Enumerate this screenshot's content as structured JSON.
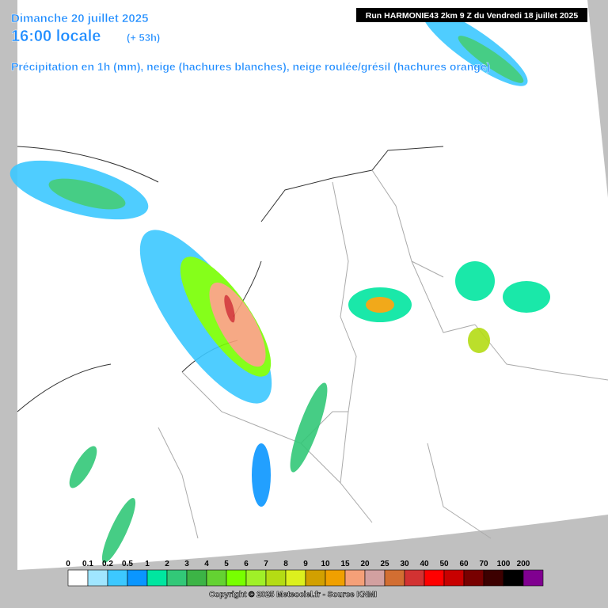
{
  "header": {
    "date": "Dimanche 20 juillet 2025",
    "time": "16:00 locale",
    "lead": "(+ 53h)",
    "subtitle": "Précipitation en 1h (mm), neige (hachures blanches), neige roulée/grésil (hachures orange)",
    "run": "Run HARMONIE43 2km 9 Z du Vendredi 18 juillet 2025"
  },
  "legend": {
    "items": [
      {
        "label": "0",
        "color": "#ffffff"
      },
      {
        "label": "0.1",
        "color": "#a0e6ff"
      },
      {
        "label": "0.2",
        "color": "#3cc8ff"
      },
      {
        "label": "0.5",
        "color": "#0a96ff"
      },
      {
        "label": "1",
        "color": "#00e6a0"
      },
      {
        "label": "2",
        "color": "#32c878"
      },
      {
        "label": "3",
        "color": "#3cb446"
      },
      {
        "label": "4",
        "color": "#64d232"
      },
      {
        "label": "5",
        "color": "#78ff00"
      },
      {
        "label": "6",
        "color": "#a0f028"
      },
      {
        "label": "7",
        "color": "#b4dc14"
      },
      {
        "label": "8",
        "color": "#dcf01e"
      },
      {
        "label": "9",
        "color": "#d2a000"
      },
      {
        "label": "10",
        "color": "#f0a000"
      },
      {
        "label": "15",
        "color": "#f5a078"
      },
      {
        "label": "20",
        "color": "#d2a0a0"
      },
      {
        "label": "25",
        "color": "#d26e32"
      },
      {
        "label": "30",
        "color": "#d23232"
      },
      {
        "label": "40",
        "color": "#ff0000"
      },
      {
        "label": "50",
        "color": "#c80000"
      },
      {
        "label": "60",
        "color": "#780000"
      },
      {
        "label": "70",
        "color": "#3c0000"
      },
      {
        "label": "100",
        "color": "#000000"
      },
      {
        "label": "200",
        "color": "#800090"
      }
    ]
  },
  "footer": {
    "copyright": "Copyright © 2025 Meteociel.fr - Source KNMI"
  }
}
